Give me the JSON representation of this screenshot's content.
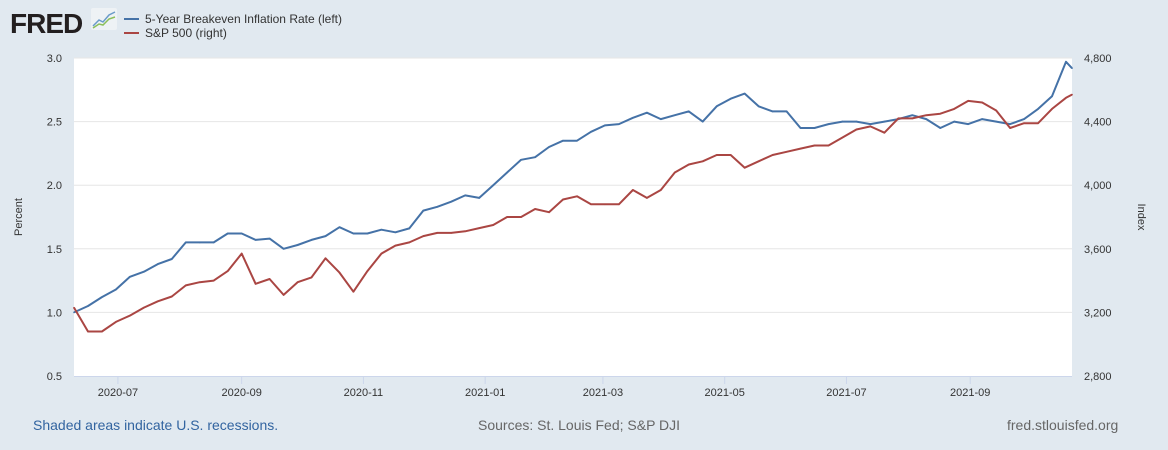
{
  "logo": "FRED",
  "chart_data": {
    "type": "line",
    "legend_position": "top-left",
    "grid": true,
    "x_tick_labels": [
      "2020-07",
      "2020-09",
      "2020-11",
      "2021-01",
      "2021-03",
      "2021-05",
      "2021-07",
      "2021-09"
    ],
    "x_ticks": [
      "2020-07-01",
      "2020-09-01",
      "2020-11-01",
      "2021-01-01",
      "2021-03-01",
      "2021-05-01",
      "2021-07-01",
      "2021-09-01"
    ],
    "xlim": [
      "2020-06-09",
      "2021-10-22"
    ],
    "left_axis": {
      "label": "Percent",
      "ylim": [
        0.5,
        3.0
      ],
      "ticks": [
        "0.5",
        "1.0",
        "1.5",
        "2.0",
        "2.5",
        "3.0"
      ]
    },
    "right_axis": {
      "label": "Index",
      "ylim": [
        2800,
        4800
      ],
      "ticks": [
        "2,800",
        "3,200",
        "3,600",
        "4,000",
        "4,400",
        "4,800"
      ]
    },
    "x": [
      "2020-06-09",
      "2020-06-16",
      "2020-06-23",
      "2020-06-30",
      "2020-07-07",
      "2020-07-14",
      "2020-07-21",
      "2020-07-28",
      "2020-08-04",
      "2020-08-11",
      "2020-08-18",
      "2020-08-25",
      "2020-09-01",
      "2020-09-08",
      "2020-09-15",
      "2020-09-22",
      "2020-09-29",
      "2020-10-06",
      "2020-10-13",
      "2020-10-20",
      "2020-10-27",
      "2020-11-03",
      "2020-11-10",
      "2020-11-17",
      "2020-11-24",
      "2020-12-01",
      "2020-12-08",
      "2020-12-15",
      "2020-12-22",
      "2020-12-29",
      "2021-01-05",
      "2021-01-12",
      "2021-01-19",
      "2021-01-26",
      "2021-02-02",
      "2021-02-09",
      "2021-02-16",
      "2021-02-23",
      "2021-03-02",
      "2021-03-09",
      "2021-03-16",
      "2021-03-23",
      "2021-03-30",
      "2021-04-06",
      "2021-04-13",
      "2021-04-20",
      "2021-04-27",
      "2021-05-04",
      "2021-05-11",
      "2021-05-18",
      "2021-05-25",
      "2021-06-01",
      "2021-06-08",
      "2021-06-15",
      "2021-06-22",
      "2021-06-29",
      "2021-07-06",
      "2021-07-13",
      "2021-07-20",
      "2021-07-27",
      "2021-08-03",
      "2021-08-10",
      "2021-08-17",
      "2021-08-24",
      "2021-08-31",
      "2021-09-07",
      "2021-09-14",
      "2021-09-21",
      "2021-09-28",
      "2021-10-05",
      "2021-10-12",
      "2021-10-19",
      "2021-10-22"
    ],
    "series": [
      {
        "name": "5-Year Breakeven Inflation Rate (left)",
        "axis": "left",
        "color": "#4572a7",
        "values": [
          1.0,
          1.05,
          1.12,
          1.18,
          1.28,
          1.32,
          1.38,
          1.42,
          1.55,
          1.55,
          1.55,
          1.62,
          1.62,
          1.57,
          1.58,
          1.5,
          1.53,
          1.57,
          1.6,
          1.67,
          1.62,
          1.62,
          1.65,
          1.63,
          1.66,
          1.8,
          1.83,
          1.87,
          1.92,
          1.9,
          2.0,
          2.1,
          2.2,
          2.22,
          2.3,
          2.35,
          2.35,
          2.42,
          2.47,
          2.48,
          2.53,
          2.57,
          2.52,
          2.55,
          2.58,
          2.5,
          2.62,
          2.68,
          2.72,
          2.62,
          2.58,
          2.58,
          2.45,
          2.45,
          2.48,
          2.5,
          2.5,
          2.48,
          2.5,
          2.52,
          2.55,
          2.52,
          2.45,
          2.5,
          2.48,
          2.52,
          2.5,
          2.48,
          2.52,
          2.6,
          2.7,
          2.97,
          2.92
        ]
      },
      {
        "name": "S&P 500 (right)",
        "axis": "right",
        "color": "#aa4643",
        "values": [
          3230,
          3080,
          3080,
          3140,
          3180,
          3230,
          3270,
          3300,
          3370,
          3390,
          3400,
          3460,
          3570,
          3380,
          3410,
          3310,
          3390,
          3420,
          3540,
          3450,
          3330,
          3460,
          3570,
          3620,
          3640,
          3680,
          3700,
          3700,
          3710,
          3730,
          3750,
          3800,
          3800,
          3850,
          3830,
          3910,
          3930,
          3880,
          3880,
          3880,
          3970,
          3920,
          3970,
          4080,
          4130,
          4150,
          4190,
          4190,
          4110,
          4150,
          4190,
          4210,
          4230,
          4250,
          4250,
          4300,
          4350,
          4370,
          4330,
          4420,
          4420,
          4440,
          4450,
          4480,
          4530,
          4520,
          4470,
          4360,
          4390,
          4390,
          4480,
          4550,
          4570
        ]
      }
    ]
  },
  "footer": {
    "recessions": "Shaded areas indicate U.S. recessions.",
    "sources": "Sources: St. Louis Fed; S&P DJI",
    "site": "fred.stlouisfed.org"
  }
}
